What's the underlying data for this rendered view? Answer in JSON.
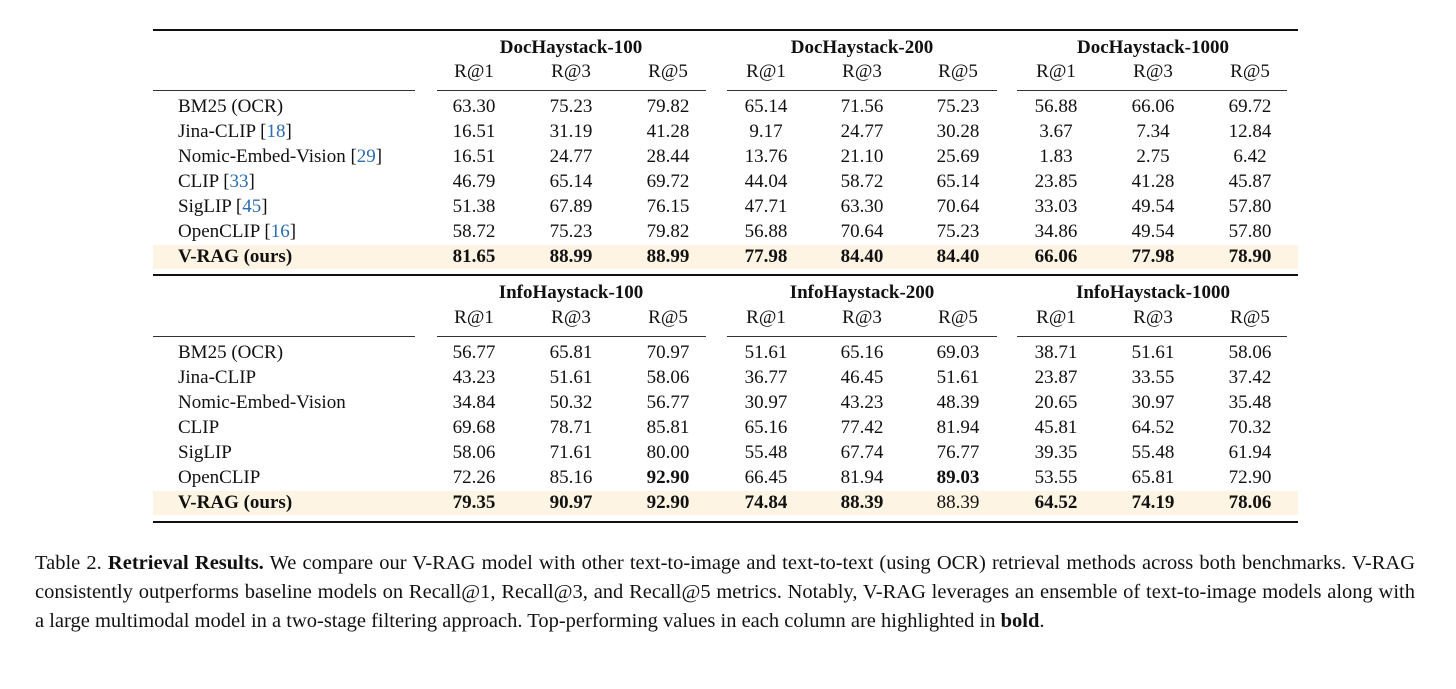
{
  "tables": [
    {
      "groups": [
        "DocHaystack-100",
        "DocHaystack-200",
        "DocHaystack-1000"
      ],
      "metrics": [
        "R@1",
        "R@3",
        "R@5"
      ],
      "rows": [
        {
          "label": "BM25 (OCR)",
          "cite": "",
          "values": [
            "63.30",
            "75.23",
            "79.82",
            "65.14",
            "71.56",
            "75.23",
            "56.88",
            "66.06",
            "69.72"
          ],
          "bold": []
        },
        {
          "label": "Jina-CLIP",
          "cite": "18",
          "values": [
            "16.51",
            "31.19",
            "41.28",
            "9.17",
            "24.77",
            "30.28",
            "3.67",
            "7.34",
            "12.84"
          ],
          "bold": []
        },
        {
          "label": "Nomic-Embed-Vision",
          "cite": "29",
          "values": [
            "16.51",
            "24.77",
            "28.44",
            "13.76",
            "21.10",
            "25.69",
            "1.83",
            "2.75",
            "6.42"
          ],
          "bold": []
        },
        {
          "label": "CLIP",
          "cite": "33",
          "values": [
            "46.79",
            "65.14",
            "69.72",
            "44.04",
            "58.72",
            "65.14",
            "23.85",
            "41.28",
            "45.87"
          ],
          "bold": []
        },
        {
          "label": "SigLIP",
          "cite": "45",
          "values": [
            "51.38",
            "67.89",
            "76.15",
            "47.71",
            "63.30",
            "70.64",
            "33.03",
            "49.54",
            "57.80"
          ],
          "bold": []
        },
        {
          "label": "OpenCLIP",
          "cite": "16",
          "values": [
            "58.72",
            "75.23",
            "79.82",
            "56.88",
            "70.64",
            "75.23",
            "34.86",
            "49.54",
            "57.80"
          ],
          "bold": []
        },
        {
          "label": "V-RAG (ours)",
          "cite": "",
          "labelBold": true,
          "highlight": true,
          "values": [
            "81.65",
            "88.99",
            "88.99",
            "77.98",
            "84.40",
            "84.40",
            "66.06",
            "77.98",
            "78.90"
          ],
          "bold": [
            0,
            1,
            2,
            3,
            4,
            5,
            6,
            7,
            8
          ]
        }
      ]
    },
    {
      "groups": [
        "InfoHaystack-100",
        "InfoHaystack-200",
        "InfoHaystack-1000"
      ],
      "metrics": [
        "R@1",
        "R@3",
        "R@5"
      ],
      "rows": [
        {
          "label": "BM25 (OCR)",
          "cite": "",
          "values": [
            "56.77",
            "65.81",
            "70.97",
            "51.61",
            "65.16",
            "69.03",
            "38.71",
            "51.61",
            "58.06"
          ],
          "bold": []
        },
        {
          "label": "Jina-CLIP",
          "cite": "",
          "values": [
            "43.23",
            "51.61",
            "58.06",
            "36.77",
            "46.45",
            "51.61",
            "23.87",
            "33.55",
            "37.42"
          ],
          "bold": []
        },
        {
          "label": "Nomic-Embed-Vision",
          "cite": "",
          "values": [
            "34.84",
            "50.32",
            "56.77",
            "30.97",
            "43.23",
            "48.39",
            "20.65",
            "30.97",
            "35.48"
          ],
          "bold": []
        },
        {
          "label": "CLIP",
          "cite": "",
          "values": [
            "69.68",
            "78.71",
            "85.81",
            "65.16",
            "77.42",
            "81.94",
            "45.81",
            "64.52",
            "70.32"
          ],
          "bold": []
        },
        {
          "label": "SigLIP",
          "cite": "",
          "values": [
            "58.06",
            "71.61",
            "80.00",
            "55.48",
            "67.74",
            "76.77",
            "39.35",
            "55.48",
            "61.94"
          ],
          "bold": []
        },
        {
          "label": "OpenCLIP",
          "cite": "",
          "values": [
            "72.26",
            "85.16",
            "92.90",
            "66.45",
            "81.94",
            "89.03",
            "53.55",
            "65.81",
            "72.90"
          ],
          "bold": [
            2,
            5
          ]
        },
        {
          "label": "V-RAG (ours)",
          "cite": "",
          "labelBold": true,
          "highlight": true,
          "values": [
            "79.35",
            "90.97",
            "92.90",
            "74.84",
            "88.39",
            "88.39",
            "64.52",
            "74.19",
            "78.06"
          ],
          "bold": [
            0,
            1,
            2,
            3,
            4,
            6,
            7,
            8
          ]
        }
      ]
    }
  ],
  "caption": {
    "prefix": "Table 2. ",
    "title": "Retrieval Results.",
    "text": " We compare our V-RAG model with other text-to-image and text-to-text (using OCR) retrieval methods across both benchmarks.  V-RAG consistently outperforms baseline models on Recall@1, Recall@3, and Recall@5 metrics.  Notably, V-RAG leverages an ensemble of text-to-image models along with a large multimodal model in a two-stage filtering approach.  Top-performing values in each column are highlighted in ",
    "bold_word": "bold",
    "end": "."
  }
}
